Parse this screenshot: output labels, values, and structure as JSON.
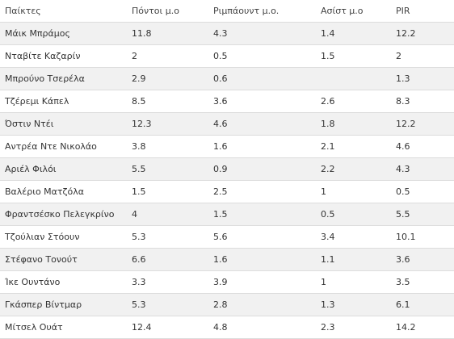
{
  "table": {
    "headers": [
      "Παίκτες",
      "Πόντοι μ.ο",
      "Ριμπάουντ μ.ο.",
      "Ασίστ μ.ο",
      "PIR"
    ],
    "rows": [
      [
        "Μάικ Μπράμος",
        "11.8",
        "4.3",
        "1.4",
        "12.2"
      ],
      [
        "Νταβίτε Καζαρίν",
        "2",
        "0.5",
        "1.5",
        "2"
      ],
      [
        "Μπρούνο Τσερέλα",
        "2.9",
        "0.6",
        "",
        "1.3"
      ],
      [
        "Τζέρεμι Κάπελ",
        "8.5",
        "3.6",
        "2.6",
        "8.3"
      ],
      [
        "Όστιν Ντέι",
        "12.3",
        "4.6",
        "1.8",
        "12.2"
      ],
      [
        "Αντρέα Ντε Νικολάο",
        "3.8",
        "1.6",
        "2.1",
        "4.6"
      ],
      [
        "Αριέλ Φιλόι",
        "5.5",
        "0.9",
        "2.2",
        "4.3"
      ],
      [
        "Βαλέριο Ματζόλα",
        "1.5",
        "2.5",
        "1",
        "0.5"
      ],
      [
        "Φραντσέσκο Πελεγκρίνο",
        "4",
        "1.5",
        "0.5",
        "5.5"
      ],
      [
        "Τζούλιαν Στόουν",
        "5.3",
        "5.6",
        "3.4",
        "10.1"
      ],
      [
        "Στέφανο Τονούτ",
        "6.6",
        "1.6",
        "1.1",
        "3.6"
      ],
      [
        "Ίκε Ουντάνο",
        "3.3",
        "3.9",
        "1",
        "3.5"
      ],
      [
        "Γκάσπερ Βίντμαρ",
        "5.3",
        "2.8",
        "1.3",
        "6.1"
      ],
      [
        "Μίτσελ Ουάτ",
        "12.4",
        "4.8",
        "2.3",
        "14.2"
      ]
    ]
  }
}
